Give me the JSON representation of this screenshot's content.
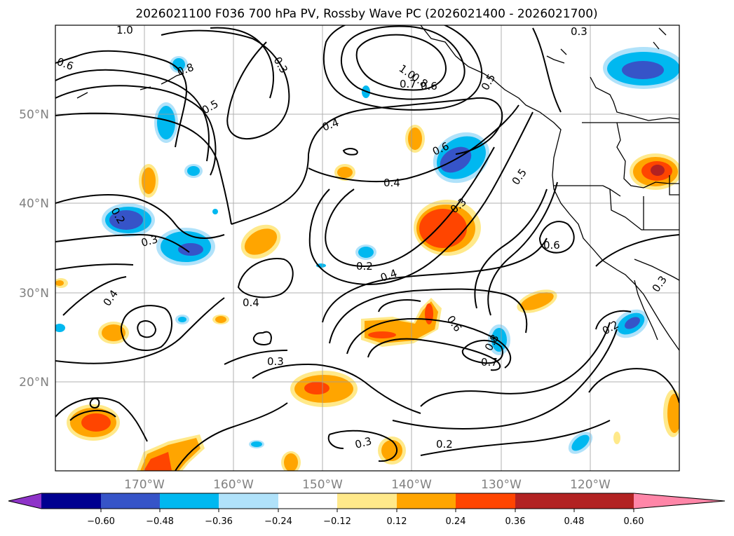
{
  "title": "2026021100 F036 700 hPa PV, Rossby Wave PC (2026021400 - 2026021700)",
  "map": {
    "lat_labels": [
      "50°N",
      "40°N",
      "30°N",
      "20°N"
    ],
    "lon_labels": [
      "170°W",
      "160°W",
      "150°W",
      "140°W",
      "130°W",
      "120°W"
    ],
    "contour_labels": [
      "1.0",
      "0.6",
      "0.8",
      "0.5",
      "0.3",
      "1.0",
      "0.8",
      "0.7",
      "0.6",
      "0.5",
      "0.3",
      "0.4",
      "0.6",
      "0.4",
      "0.5",
      "0.2",
      "0.3",
      "0.3",
      "0.2",
      "0.4",
      "0.6",
      "0.4",
      "0.6",
      "0.8",
      "0.7",
      "0.2",
      "0.3",
      "0.4",
      "0.3",
      "0.3",
      "0.2"
    ]
  },
  "colorbar": {
    "ticks": [
      "−0.60",
      "−0.48",
      "−0.36",
      "−0.24",
      "−0.12",
      "0.12",
      "0.24",
      "0.36",
      "0.48",
      "0.60"
    ],
    "colors": [
      "#8e33c8",
      "#000090",
      "#3654c8",
      "#00b8f0",
      "#b0e2fa",
      "#ffffff",
      "#ffe98a",
      "#ffa500",
      "#ff4500",
      "#b22222",
      "#ff86a8"
    ]
  }
}
